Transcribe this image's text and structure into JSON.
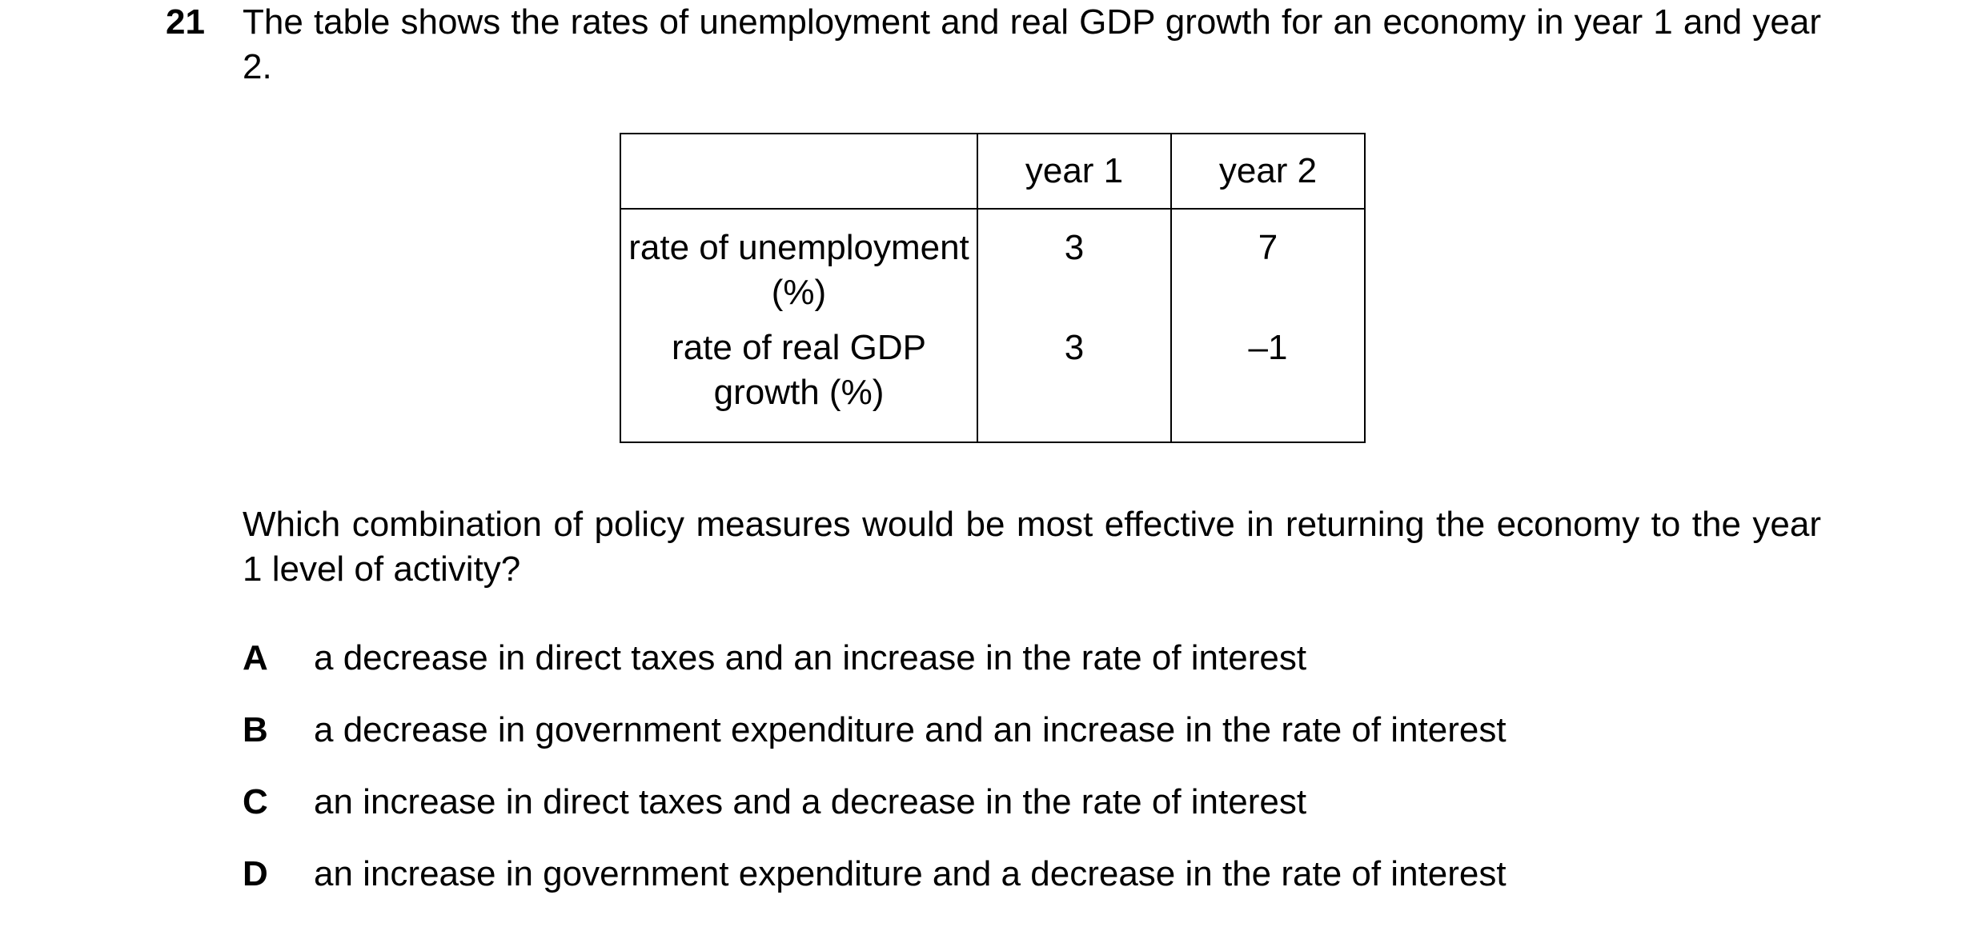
{
  "question": {
    "number": "21",
    "stem": "The table shows the rates of unemployment and real GDP growth for an economy in year 1 and year 2.",
    "table": {
      "headers": [
        "",
        "year 1",
        "year 2"
      ],
      "rows": [
        {
          "label": "rate of unemployment (%)",
          "year1": "3",
          "year2": "7"
        },
        {
          "label": "rate of real GDP growth (%)",
          "year1": "3",
          "year2": "–1"
        }
      ]
    },
    "prompt": "Which combination of policy measures would be most effective in returning the economy to the year 1 level of activity?",
    "options": [
      {
        "letter": "A",
        "text": "a decrease in direct taxes and an increase in the rate of interest"
      },
      {
        "letter": "B",
        "text": "a decrease in government expenditure and an increase in the rate of interest"
      },
      {
        "letter": "C",
        "text": "an increase in direct taxes and a decrease in the rate of interest"
      },
      {
        "letter": "D",
        "text": "an increase in government expenditure and a decrease in the rate of interest"
      }
    ]
  }
}
